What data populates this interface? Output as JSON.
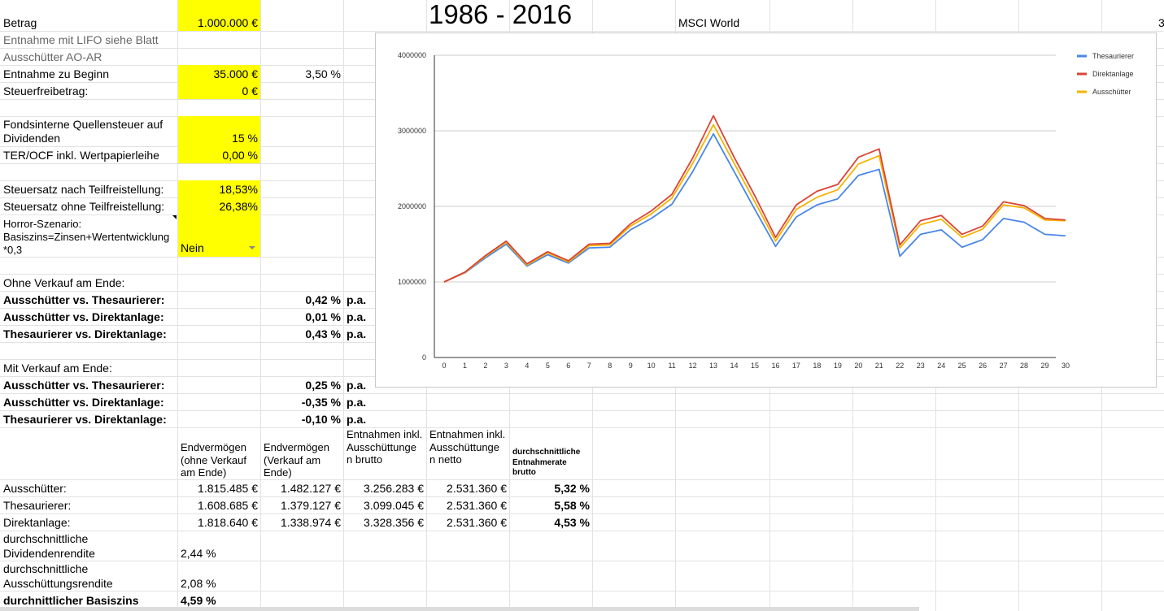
{
  "sheet": {
    "title_years": "1986 - 2016",
    "index_name": "MSCI World",
    "edge_char": "3"
  },
  "params": {
    "betrag_label": "Betrag",
    "betrag_value": "1.000.000 €",
    "lifo_label": "Entnahme mit LIFO siehe Blatt",
    "ausschuetter_ao_label": "Ausschütter AO-AR",
    "entnahme_label": "Entnahme zu Beginn",
    "entnahme_value": "35.000 €",
    "entnahme_pct": "3,50 %",
    "freibetrag_label": "Steuerfreibetrag:",
    "freibetrag_value": "0 €",
    "quellensteuer_label_1": "Fondsinterne Quellensteuer auf",
    "quellensteuer_label_2": "Dividenden",
    "quellensteuer_value": "15 %",
    "ter_label": "TER/OCF inkl. Wertpapierleihe",
    "ter_value": "0,00 %",
    "steuer_tf_label": "Steuersatz nach Teilfreistellung:",
    "steuer_tf_value": "18,53%",
    "steuer_otf_label": "Steuersatz ohne Teilfreistellung:",
    "steuer_otf_value": "26,38%",
    "horror_label_1": "Horror-Szenario:",
    "horror_label_2": "Basiszins=Zinsen+Wertentwicklung",
    "horror_label_3": "*0,3",
    "horror_value": "Nein"
  },
  "ohne_verkauf": {
    "heading": "Ohne Verkauf am Ende:",
    "rows": [
      {
        "label": "Ausschütter vs. Thesaurierer:",
        "value": "0,42 %",
        "unit": "p.a."
      },
      {
        "label": "Ausschütter vs. Direktanlage:",
        "value": "0,01 %",
        "unit": "p.a."
      },
      {
        "label": "Thesaurierer vs. Direktanlage:",
        "value": "0,43 %",
        "unit": "p.a."
      }
    ]
  },
  "mit_verkauf": {
    "heading": "Mit Verkauf am Ende:",
    "rows": [
      {
        "label": "Ausschütter vs. Thesaurierer:",
        "value": "0,25 %",
        "unit": "p.a."
      },
      {
        "label": "Ausschütter vs. Direktanlage:",
        "value": "-0,35 %",
        "unit": "p.a."
      },
      {
        "label": "Thesaurierer vs. Direktanlage:",
        "value": "-0,10 %",
        "unit": "p.a."
      }
    ]
  },
  "table": {
    "headers": {
      "endv_ohne": "Endvermögen (ohne Verkauf am Ende)",
      "endv_mit": "Endvermögen (Verkauf am Ende)",
      "entn_brutto": "Entnahmen inkl. Ausschüttunge n brutto",
      "entn_netto": "Entnahmen inkl. Ausschüttunge n netto",
      "rate": "durchschnittliche Entnahmerate brutto"
    },
    "rows": [
      {
        "label": "Ausschütter:",
        "endv_ohne": "1.815.485 €",
        "endv_mit": "1.482.127 €",
        "brutto": "3.256.283 €",
        "netto": "2.531.360 €",
        "rate": "5,32 %"
      },
      {
        "label": "Thesaurierer:",
        "endv_ohne": "1.608.685 €",
        "endv_mit": "1.379.127 €",
        "brutto": "3.099.045 €",
        "netto": "2.531.360 €",
        "rate": "5,58 %"
      },
      {
        "label": "Direktanlage:",
        "endv_ohne": "1.818.640 €",
        "endv_mit": "1.338.974 €",
        "brutto": "3.328.356 €",
        "netto": "2.531.360 €",
        "rate": "4,53 %"
      }
    ],
    "div_label_1": "durchschnittliche",
    "div_label_2": "Dividendenrendite",
    "div_value": "2,44 %",
    "aus_label_1": "durchschnittliche",
    "aus_label_2": "Ausschüttungsrendite",
    "aus_value": "2,08 %",
    "basis_label": "durchnittlicher Basiszins",
    "basis_value": "4,59 %"
  },
  "chart_data": {
    "type": "line",
    "x": [
      0,
      1,
      2,
      3,
      4,
      5,
      6,
      7,
      8,
      9,
      10,
      11,
      12,
      13,
      14,
      15,
      16,
      17,
      18,
      19,
      20,
      21,
      22,
      23,
      24,
      25,
      26,
      27,
      28,
      29,
      30
    ],
    "ylim": [
      0,
      4000000
    ],
    "yticks": [
      0,
      1000000,
      2000000,
      3000000,
      4000000
    ],
    "grid": true,
    "legend_position": "top-right",
    "series": [
      {
        "name": "Thesaurierer",
        "color": "#4a86e8",
        "values": [
          1000000,
          1120000,
          1320000,
          1500000,
          1210000,
          1360000,
          1250000,
          1450000,
          1460000,
          1690000,
          1840000,
          2030000,
          2460000,
          2960000,
          2460000,
          1960000,
          1470000,
          1860000,
          2020000,
          2100000,
          2410000,
          2490000,
          1340000,
          1630000,
          1690000,
          1460000,
          1560000,
          1840000,
          1790000,
          1630000,
          1610000
        ]
      },
      {
        "name": "Direktanlage",
        "color": "#db4437",
        "values": [
          1000000,
          1130000,
          1350000,
          1540000,
          1240000,
          1400000,
          1280000,
          1500000,
          1510000,
          1770000,
          1940000,
          2160000,
          2640000,
          3200000,
          2650000,
          2140000,
          1590000,
          2020000,
          2200000,
          2290000,
          2650000,
          2760000,
          1490000,
          1810000,
          1880000,
          1630000,
          1740000,
          2060000,
          2010000,
          1840000,
          1820000
        ]
      },
      {
        "name": "Ausschütter",
        "color": "#f4b400",
        "values": [
          1000000,
          1125000,
          1340000,
          1525000,
          1225000,
          1385000,
          1265000,
          1480000,
          1490000,
          1740000,
          1900000,
          2110000,
          2570000,
          3080000,
          2570000,
          2060000,
          1540000,
          1960000,
          2120000,
          2220000,
          2560000,
          2670000,
          1450000,
          1760000,
          1830000,
          1590000,
          1700000,
          2020000,
          1980000,
          1820000,
          1810000
        ]
      }
    ]
  }
}
